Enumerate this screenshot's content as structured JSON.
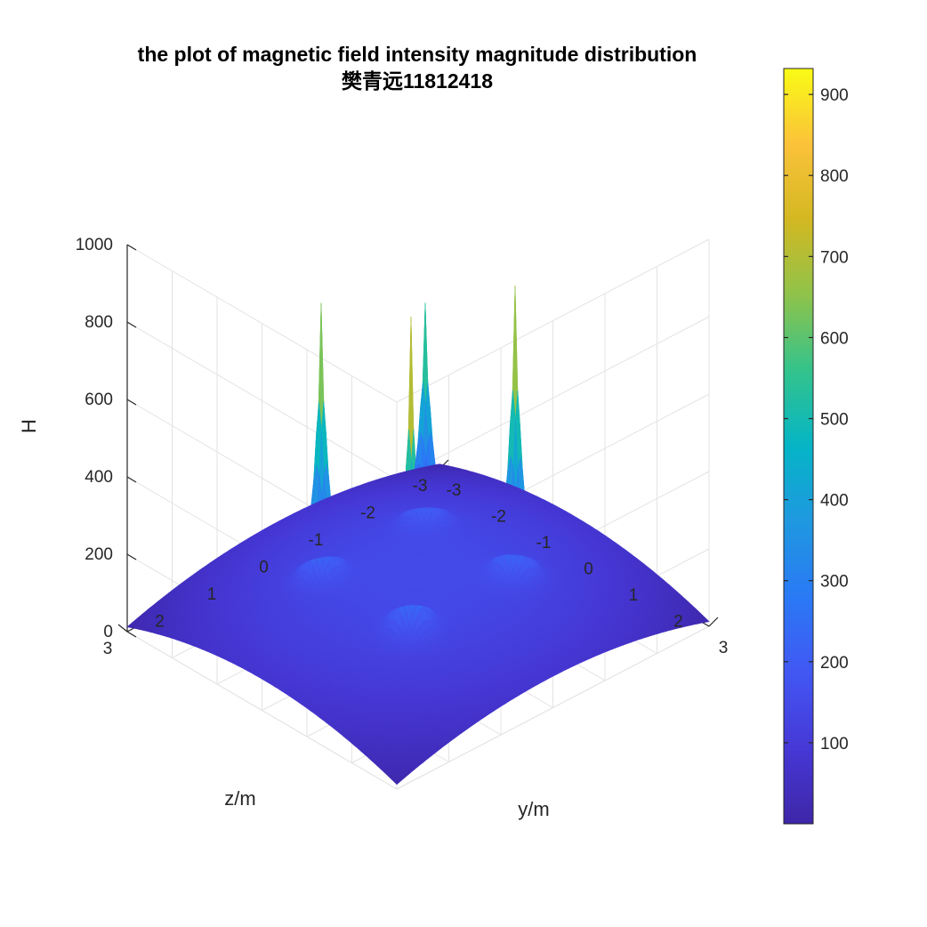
{
  "chart_data": {
    "type": "surface",
    "title": "the plot of magnetic field intensity magnitude distribution",
    "subtitle": "樊青远11812418",
    "xlabel": "y/m",
    "ylabel": "z/m",
    "zlabel": "H",
    "xlim": [
      -3,
      3
    ],
    "ylim": [
      -3,
      3
    ],
    "zlim": [
      0,
      1000
    ],
    "x_ticks": [
      "-3",
      "-2",
      "-1",
      "0",
      "1",
      "2",
      "3"
    ],
    "y_ticks": [
      "-3",
      "-2",
      "-1",
      "0",
      "1",
      "2",
      "3"
    ],
    "z_ticks": [
      "0",
      "200",
      "400",
      "600",
      "800",
      "1000"
    ],
    "grid": true,
    "colormap": "parula",
    "peaks": [
      {
        "y": -1.0,
        "z": 1.0,
        "H": 830
      },
      {
        "y": -1.0,
        "z": -1.0,
        "H": 690
      },
      {
        "y": 1.0,
        "z": 1.0,
        "H": 930
      },
      {
        "y": 1.0,
        "z": -1.0,
        "H": 870
      }
    ],
    "baseline": {
      "corner_H": 5,
      "center_H": 150
    },
    "colorbar": {
      "min": 0,
      "max": 932,
      "ticks": [
        "100",
        "200",
        "300",
        "400",
        "500",
        "600",
        "700",
        "800",
        "900"
      ],
      "tick_values": [
        100,
        200,
        300,
        400,
        500,
        600,
        700,
        800,
        900
      ]
    }
  }
}
